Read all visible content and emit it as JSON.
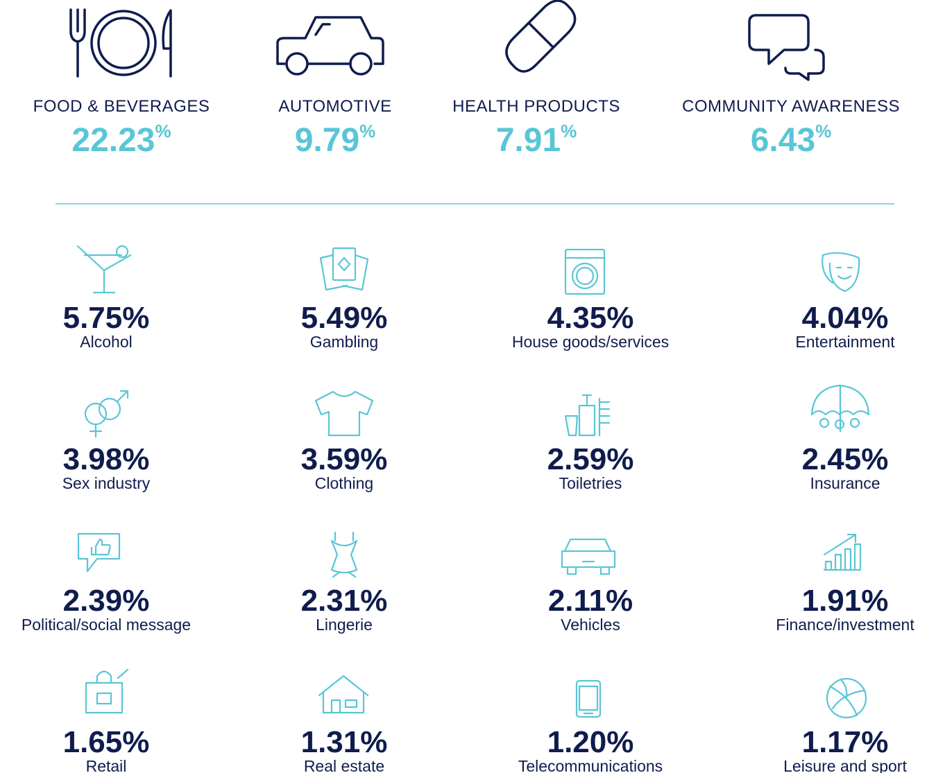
{
  "top": [
    {
      "label": "FOOD & BEVERAGES",
      "value": "22.23",
      "unit": "%"
    },
    {
      "label": "AUTOMOTIVE",
      "value": "9.79",
      "unit": "%"
    },
    {
      "label": "HEALTH PRODUCTS",
      "value": "7.91",
      "unit": "%"
    },
    {
      "label": "COMMUNITY AWARENESS",
      "value": "6.43",
      "unit": "%"
    }
  ],
  "items": [
    {
      "value": "5.75%",
      "label": "Alcohol"
    },
    {
      "value": "5.49%",
      "label": "Gambling"
    },
    {
      "value": "4.35%",
      "label": "House goods/services"
    },
    {
      "value": "4.04%",
      "label": "Entertainment"
    },
    {
      "value": "3.98%",
      "label": "Sex industry"
    },
    {
      "value": "3.59%",
      "label": "Clothing"
    },
    {
      "value": "2.59%",
      "label": "Toiletries"
    },
    {
      "value": "2.45%",
      "label": "Insurance"
    },
    {
      "value": "2.39%",
      "label": "Political/social message"
    },
    {
      "value": "2.31%",
      "label": "Lingerie"
    },
    {
      "value": "2.11%",
      "label": "Vehicles"
    },
    {
      "value": "1.91%",
      "label": "Finance/investment"
    },
    {
      "value": "1.65%",
      "label": "Retail"
    },
    {
      "value": "1.31%",
      "label": "Real estate"
    },
    {
      "value": "1.20%",
      "label": "Telecommunications"
    },
    {
      "value": "1.17%",
      "label": "Leisure and sport"
    }
  ]
}
